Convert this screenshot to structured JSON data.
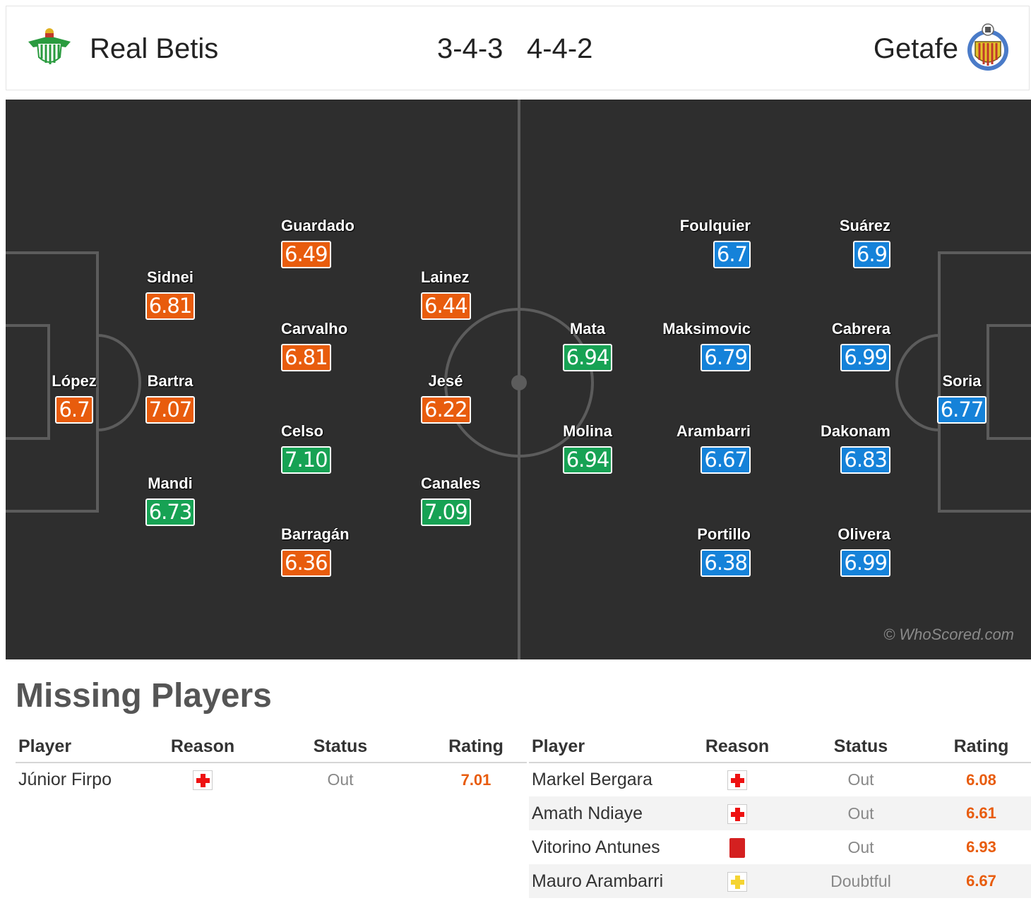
{
  "header": {
    "home_team": "Real Betis",
    "away_team": "Getafe",
    "home_formation": "3-4-3",
    "away_formation": "4-4-2",
    "home_crest_icon": "real-betis-crest",
    "away_crest_icon": "getafe-crest"
  },
  "colors": {
    "pitch": "#2e2e2e",
    "rating_low": "#e85c0d",
    "rating_high": "#17a254",
    "rating_away": "#1582d9"
  },
  "pitch": {
    "watermark": "© WhoScored.com",
    "home_players": [
      {
        "name": "López",
        "rating": "6.7",
        "color": "orange"
      },
      {
        "name": "Sidnei",
        "rating": "6.81",
        "color": "orange"
      },
      {
        "name": "Bartra",
        "rating": "7.07",
        "color": "orange"
      },
      {
        "name": "Mandi",
        "rating": "6.73",
        "color": "green"
      },
      {
        "name": "Guardado",
        "rating": "6.49",
        "color": "orange"
      },
      {
        "name": "Carvalho",
        "rating": "6.81",
        "color": "orange"
      },
      {
        "name": "Celso",
        "rating": "7.10",
        "color": "green"
      },
      {
        "name": "Barragán",
        "rating": "6.36",
        "color": "orange"
      },
      {
        "name": "Lainez",
        "rating": "6.44",
        "color": "orange"
      },
      {
        "name": "Jesé",
        "rating": "6.22",
        "color": "orange"
      },
      {
        "name": "Canales",
        "rating": "7.09",
        "color": "green"
      }
    ],
    "away_players": [
      {
        "name": "Mata",
        "rating": "6.94",
        "color": "green"
      },
      {
        "name": "Molina",
        "rating": "6.94",
        "color": "green"
      },
      {
        "name": "Foulquier",
        "rating": "6.7",
        "color": "blue"
      },
      {
        "name": "Maksimovic",
        "rating": "6.79",
        "color": "blue"
      },
      {
        "name": "Arambarri",
        "rating": "6.67",
        "color": "blue"
      },
      {
        "name": "Portillo",
        "rating": "6.38",
        "color": "blue"
      },
      {
        "name": "Suárez",
        "rating": "6.9",
        "color": "blue"
      },
      {
        "name": "Cabrera",
        "rating": "6.99",
        "color": "blue"
      },
      {
        "name": "Dakonam",
        "rating": "6.83",
        "color": "blue"
      },
      {
        "name": "Olivera",
        "rating": "6.99",
        "color": "blue"
      },
      {
        "name": "Soria",
        "rating": "6.77",
        "color": "blue"
      }
    ]
  },
  "missing": {
    "title": "Missing Players",
    "columns": [
      "Player",
      "Reason",
      "Status",
      "Rating"
    ],
    "home": [
      {
        "player": "Júnior Firpo",
        "reason_icon": "injury-icon",
        "status": "Out",
        "rating": "7.01"
      }
    ],
    "away": [
      {
        "player": "Markel Bergara",
        "reason_icon": "injury-icon",
        "status": "Out",
        "rating": "6.08"
      },
      {
        "player": "Amath Ndiaye",
        "reason_icon": "injury-icon",
        "status": "Out",
        "rating": "6.61"
      },
      {
        "player": "Vitorino Antunes",
        "reason_icon": "red-card-icon",
        "status": "Out",
        "rating": "6.93"
      },
      {
        "player": "Mauro Arambarri",
        "reason_icon": "doubtful-icon",
        "status": "Doubtful",
        "rating": "6.67"
      }
    ]
  }
}
